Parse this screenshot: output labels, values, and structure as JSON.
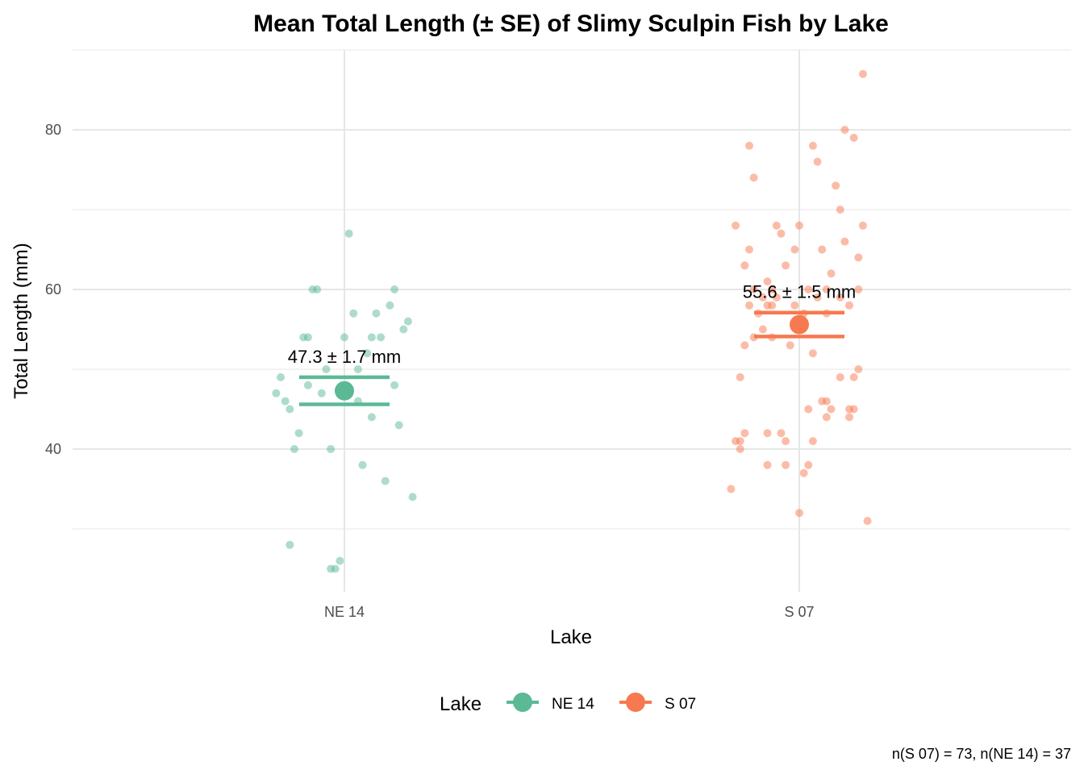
{
  "chart_data": {
    "type": "scatter",
    "title": "Mean Total Length (± SE) of Slimy Sculpin Fish by Lake",
    "xlabel": "Lake",
    "ylabel": "Total Length (mm)",
    "categories": [
      "NE 14",
      "S 07"
    ],
    "ylim": [
      22,
      90
    ],
    "y_ticks": [
      40,
      60,
      80
    ],
    "grid": true,
    "legend": {
      "title": "Lake",
      "position": "bottom",
      "entries": [
        "NE 14",
        "S 07"
      ]
    },
    "colors": {
      "NE 14": "#5bb995",
      "S 07": "#f7794f"
    },
    "series": [
      {
        "name": "NE 14",
        "mean": 47.3,
        "se": 1.7,
        "n": 37,
        "label": "47.3 ± 1.7 mm",
        "points": [
          {
            "dx": 0.01,
            "y": 67
          },
          {
            "dx": -0.07,
            "y": 60
          },
          {
            "dx": -0.06,
            "y": 60
          },
          {
            "dx": 0.11,
            "y": 60
          },
          {
            "dx": 0.02,
            "y": 57
          },
          {
            "dx": 0.07,
            "y": 57
          },
          {
            "dx": 0.1,
            "y": 58
          },
          {
            "dx": 0.14,
            "y": 56
          },
          {
            "dx": 0.13,
            "y": 55
          },
          {
            "dx": -0.09,
            "y": 54
          },
          {
            "dx": -0.08,
            "y": 54
          },
          {
            "dx": 0.0,
            "y": 54
          },
          {
            "dx": 0.06,
            "y": 54
          },
          {
            "dx": 0.08,
            "y": 54
          },
          {
            "dx": 0.05,
            "y": 52
          },
          {
            "dx": 0.03,
            "y": 50
          },
          {
            "dx": -0.04,
            "y": 50
          },
          {
            "dx": -0.14,
            "y": 49
          },
          {
            "dx": -0.08,
            "y": 48
          },
          {
            "dx": 0.11,
            "y": 48
          },
          {
            "dx": -0.15,
            "y": 47
          },
          {
            "dx": -0.05,
            "y": 47
          },
          {
            "dx": -0.13,
            "y": 46
          },
          {
            "dx": 0.03,
            "y": 46
          },
          {
            "dx": -0.12,
            "y": 45
          },
          {
            "dx": 0.06,
            "y": 44
          },
          {
            "dx": 0.12,
            "y": 43
          },
          {
            "dx": -0.1,
            "y": 42
          },
          {
            "dx": -0.11,
            "y": 40
          },
          {
            "dx": -0.03,
            "y": 40
          },
          {
            "dx": 0.04,
            "y": 38
          },
          {
            "dx": 0.09,
            "y": 36
          },
          {
            "dx": 0.15,
            "y": 34
          },
          {
            "dx": -0.12,
            "y": 28
          },
          {
            "dx": -0.01,
            "y": 26
          },
          {
            "dx": -0.02,
            "y": 25
          },
          {
            "dx": -0.03,
            "y": 25
          }
        ]
      },
      {
        "name": "S 07",
        "mean": 55.6,
        "se": 1.5,
        "n": 73,
        "label": "55.6 ± 1.5 mm",
        "points": [
          {
            "dx": 0.14,
            "y": 87
          },
          {
            "dx": 0.1,
            "y": 80
          },
          {
            "dx": 0.12,
            "y": 79
          },
          {
            "dx": -0.11,
            "y": 78
          },
          {
            "dx": 0.03,
            "y": 78
          },
          {
            "dx": 0.04,
            "y": 76
          },
          {
            "dx": -0.1,
            "y": 74
          },
          {
            "dx": 0.08,
            "y": 73
          },
          {
            "dx": 0.09,
            "y": 70
          },
          {
            "dx": -0.14,
            "y": 68
          },
          {
            "dx": -0.05,
            "y": 68
          },
          {
            "dx": -0.0,
            "y": 68
          },
          {
            "dx": 0.14,
            "y": 68
          },
          {
            "dx": -0.04,
            "y": 67
          },
          {
            "dx": 0.1,
            "y": 66
          },
          {
            "dx": -0.11,
            "y": 65
          },
          {
            "dx": -0.01,
            "y": 65
          },
          {
            "dx": 0.05,
            "y": 65
          },
          {
            "dx": 0.13,
            "y": 64
          },
          {
            "dx": -0.12,
            "y": 63
          },
          {
            "dx": -0.03,
            "y": 63
          },
          {
            "dx": 0.07,
            "y": 62
          },
          {
            "dx": -0.07,
            "y": 61
          },
          {
            "dx": -0.1,
            "y": 60
          },
          {
            "dx": -0.06,
            "y": 60
          },
          {
            "dx": 0.02,
            "y": 60
          },
          {
            "dx": 0.06,
            "y": 60
          },
          {
            "dx": 0.13,
            "y": 60
          },
          {
            "dx": -0.08,
            "y": 59
          },
          {
            "dx": -0.05,
            "y": 59
          },
          {
            "dx": 0.04,
            "y": 59
          },
          {
            "dx": 0.09,
            "y": 59
          },
          {
            "dx": -0.11,
            "y": 58
          },
          {
            "dx": -0.06,
            "y": 58
          },
          {
            "dx": -0.01,
            "y": 58
          },
          {
            "dx": 0.11,
            "y": 58
          },
          {
            "dx": -0.07,
            "y": 58
          },
          {
            "dx": -0.09,
            "y": 57
          },
          {
            "dx": 0.01,
            "y": 57
          },
          {
            "dx": 0.06,
            "y": 57
          },
          {
            "dx": -0.08,
            "y": 55
          },
          {
            "dx": -0.1,
            "y": 54
          },
          {
            "dx": -0.06,
            "y": 54
          },
          {
            "dx": -0.12,
            "y": 53
          },
          {
            "dx": -0.02,
            "y": 53
          },
          {
            "dx": 0.03,
            "y": 52
          },
          {
            "dx": 0.13,
            "y": 50
          },
          {
            "dx": -0.13,
            "y": 49
          },
          {
            "dx": 0.09,
            "y": 49
          },
          {
            "dx": 0.12,
            "y": 49
          },
          {
            "dx": 0.05,
            "y": 46
          },
          {
            "dx": 0.06,
            "y": 46
          },
          {
            "dx": 0.02,
            "y": 45
          },
          {
            "dx": 0.07,
            "y": 45
          },
          {
            "dx": 0.11,
            "y": 45
          },
          {
            "dx": 0.12,
            "y": 45
          },
          {
            "dx": 0.06,
            "y": 44
          },
          {
            "dx": 0.11,
            "y": 44
          },
          {
            "dx": -0.12,
            "y": 42
          },
          {
            "dx": -0.07,
            "y": 42
          },
          {
            "dx": -0.04,
            "y": 42
          },
          {
            "dx": -0.14,
            "y": 41
          },
          {
            "dx": -0.13,
            "y": 41
          },
          {
            "dx": -0.03,
            "y": 41
          },
          {
            "dx": 0.03,
            "y": 41
          },
          {
            "dx": -0.13,
            "y": 40
          },
          {
            "dx": -0.07,
            "y": 38
          },
          {
            "dx": -0.03,
            "y": 38
          },
          {
            "dx": 0.02,
            "y": 38
          },
          {
            "dx": 0.01,
            "y": 37
          },
          {
            "dx": -0.15,
            "y": 35
          },
          {
            "dx": 0.0,
            "y": 32
          },
          {
            "dx": 0.15,
            "y": 31
          }
        ]
      }
    ]
  },
  "caption": "n(S 07) = 73, n(NE 14) = 37"
}
